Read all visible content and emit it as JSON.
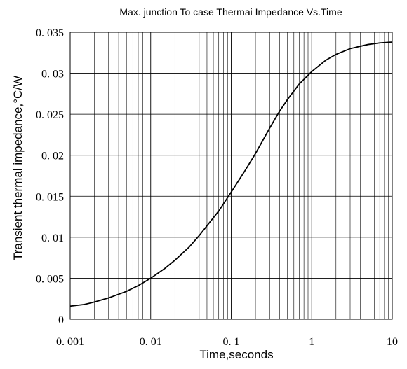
{
  "chart_data": {
    "type": "line",
    "title": "Max. junction To case Thermai Impedance Vs.Time",
    "xlabel": "Time,seconds",
    "ylabel": "Transient thermal impedance,°C/W",
    "x_scale": "log",
    "xlim": [
      0.001,
      10
    ],
    "ylim": [
      0,
      0.035
    ],
    "grid": true,
    "x_ticks": [
      {
        "value": 0.001,
        "label": "0. 001"
      },
      {
        "value": 0.01,
        "label": "0. 01"
      },
      {
        "value": 0.1,
        "label": "0. 1"
      },
      {
        "value": 1,
        "label": "1"
      },
      {
        "value": 10,
        "label": "10"
      }
    ],
    "y_ticks": [
      {
        "value": 0,
        "label": "0"
      },
      {
        "value": 0.005,
        "label": "0. 005"
      },
      {
        "value": 0.01,
        "label": "0. 01"
      },
      {
        "value": 0.015,
        "label": "0. 015"
      },
      {
        "value": 0.02,
        "label": "0. 02"
      },
      {
        "value": 0.025,
        "label": "0. 025"
      },
      {
        "value": 0.03,
        "label": "0. 03"
      },
      {
        "value": 0.035,
        "label": "0. 035"
      }
    ],
    "series": [
      {
        "x": [
          0.001,
          0.0015,
          0.002,
          0.003,
          0.005,
          0.007,
          0.01,
          0.015,
          0.02,
          0.03,
          0.04,
          0.05,
          0.07,
          0.1,
          0.15,
          0.2,
          0.3,
          0.4,
          0.5,
          0.7,
          1,
          1.5,
          2,
          3,
          5,
          7,
          10
        ],
        "y": [
          0.0016,
          0.0018,
          0.0021,
          0.0026,
          0.0034,
          0.0041,
          0.005,
          0.0062,
          0.0072,
          0.0088,
          0.0102,
          0.0114,
          0.0132,
          0.0155,
          0.0182,
          0.0202,
          0.0233,
          0.0254,
          0.0268,
          0.0287,
          0.0302,
          0.0316,
          0.0323,
          0.033,
          0.0335,
          0.0337,
          0.0338
        ]
      }
    ]
  }
}
